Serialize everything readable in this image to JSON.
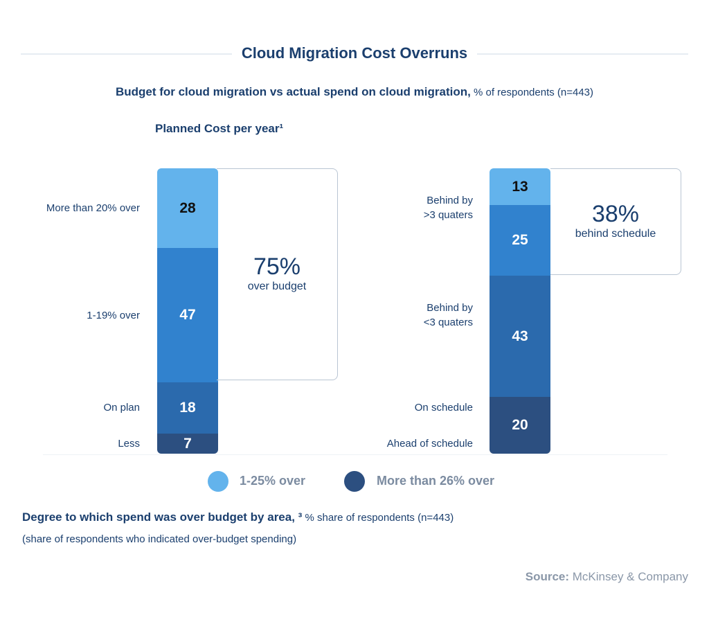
{
  "title": "Cloud Migration Cost Overruns",
  "subtitle": {
    "bold": "Budget for cloud migration vs actual spend on cloud migration,",
    "light": " % of respondents (n=443)"
  },
  "section_label": "Planned Cost per year¹",
  "chart_data": [
    {
      "type": "bar",
      "stacked": true,
      "categories": [
        "More than 20% over",
        "1-19% over",
        "On plan",
        "Less"
      ],
      "values": [
        28,
        47,
        18,
        7
      ],
      "colors": [
        "#63b3ec",
        "#3182ce",
        "#2b6aad",
        "#2c4f80"
      ],
      "callout": {
        "value": "75%",
        "label": "over budget"
      }
    },
    {
      "type": "bar",
      "stacked": true,
      "categories": [
        "Behind by >3 quaters",
        "Behind by <3 quaters",
        "On schedule",
        "Ahead of schedule"
      ],
      "values": [
        13,
        25,
        43,
        20
      ],
      "colors": [
        "#63b3ec",
        "#3182ce",
        "#2b6aad",
        "#2c4f80"
      ],
      "callout": {
        "value": "38%",
        "label": "behind schedule"
      }
    }
  ],
  "left_labels": [
    "More than 20% over",
    "1-19% over",
    "On plan",
    "Less"
  ],
  "right_labels": [
    "Behind by\n>3 quaters",
    "Behind by\n<3 quaters",
    "On schedule",
    "Ahead of schedule"
  ],
  "legend": [
    {
      "label": "1-25% over",
      "color": "#63b3ec"
    },
    {
      "label": "More than 26% over",
      "color": "#2c4f80"
    }
  ],
  "footer": {
    "bold": "Degree to which spend was over budget by area, ³",
    "light": " % share of respondents (n=443)",
    "note": "(share of respondents who indicated over-budget spending)"
  },
  "source": {
    "label": "Source:",
    "value": " McKinsey & Company"
  }
}
